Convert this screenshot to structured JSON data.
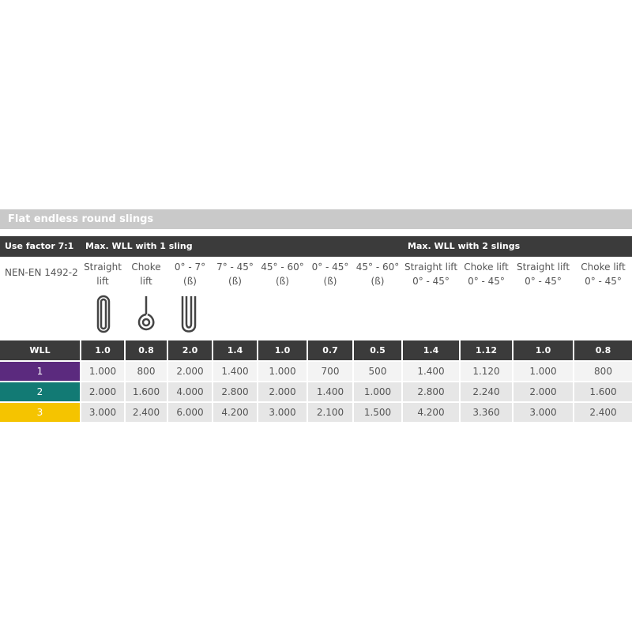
{
  "header": {
    "title": "Flat endless round slings",
    "use_factor": "Use factor 7:1",
    "group1": "Max. WLL with 1 sling",
    "group2": "Max. WLL with 2 slings",
    "standard": "NEN-EN 1492-2"
  },
  "columns": [
    {
      "line1": "Straight",
      "line2": "lift"
    },
    {
      "line1": "Choke",
      "line2": "lift"
    },
    {
      "line1": "0° - 7°",
      "line2": "(ß)"
    },
    {
      "line1": "7° - 45°",
      "line2": "(ß)"
    },
    {
      "line1": "45° - 60°",
      "line2": "(ß)"
    },
    {
      "line1": "0° - 45°",
      "line2": "(ß)"
    },
    {
      "line1": "45° - 60°",
      "line2": "(ß)"
    },
    {
      "line1": "Straight lift",
      "line2": "0° - 45°"
    },
    {
      "line1": "Choke lift",
      "line2": "0° - 45°"
    },
    {
      "line1": "Straight lift",
      "line2": "0° - 45°"
    },
    {
      "line1": "Choke lift",
      "line2": "0° - 45°"
    }
  ],
  "table": {
    "wll_label": "WLL",
    "factors": [
      "1.0",
      "0.8",
      "2.0",
      "1.4",
      "1.0",
      "0.7",
      "0.5",
      "1.4",
      "1.12",
      "1.0",
      "0.8"
    ],
    "rows": [
      {
        "label": "1",
        "color": "#5b2a7e",
        "values": [
          "1.000",
          "800",
          "2.000",
          "1.400",
          "1.000",
          "700",
          "500",
          "1.400",
          "1.120",
          "1.000",
          "800"
        ]
      },
      {
        "label": "2",
        "color": "#127a74",
        "values": [
          "2.000",
          "1.600",
          "4.000",
          "2.800",
          "2.000",
          "1.400",
          "1.000",
          "2.800",
          "2.240",
          "2.000",
          "1.600"
        ]
      },
      {
        "label": "3",
        "color": "#f5c400",
        "values": [
          "3.000",
          "2.400",
          "6.000",
          "4.200",
          "3.000",
          "2.100",
          "1.500",
          "4.200",
          "3.360",
          "3.000",
          "2.400"
        ]
      }
    ]
  }
}
